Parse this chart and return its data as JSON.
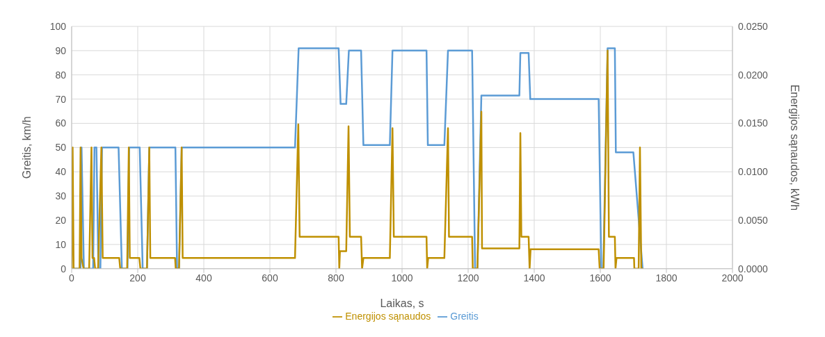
{
  "chart_data": {
    "type": "line",
    "xlabel": "Laikas, s",
    "ylabel": "Greitis, km/h",
    "y2label": "Energijos sąnaudos, kWh",
    "xlim": [
      0,
      2000
    ],
    "xticks": [
      0,
      200,
      400,
      600,
      800,
      1000,
      1200,
      1400,
      1600,
      1800,
      2000
    ],
    "ylim": [
      0,
      100
    ],
    "yticks": [
      0,
      10,
      20,
      30,
      40,
      50,
      60,
      70,
      80,
      90,
      100
    ],
    "y2lim": [
      0,
      0.025
    ],
    "y2ticks": [
      {
        "value": 0,
        "label": "0.0000"
      },
      {
        "value": 0.005,
        "label": "0.0050"
      },
      {
        "value": 0.01,
        "label": "0.0100"
      },
      {
        "value": 0.015,
        "label": "0.0150"
      },
      {
        "value": 0.02,
        "label": "0.0200"
      },
      {
        "value": 0.025,
        "label": "0.0250"
      }
    ],
    "grid": true,
    "legend": "bottom",
    "marker": "none",
    "line_style": "solid",
    "series": [
      {
        "name": "Greitis",
        "color": "#5b9bd5",
        "x": [
          0,
          27,
          30,
          37,
          65,
          69,
          75,
          81,
          87,
          92,
          142,
          152,
          169,
          174,
          206,
          215,
          228,
          235,
          314,
          319,
          325,
          333,
          676,
          687,
          808,
          814,
          831,
          839,
          876,
          883,
          963,
          971,
          1074,
          1078,
          1128,
          1139,
          1212,
          1221,
          1228,
          1240,
          1355,
          1358,
          1383,
          1388,
          1595,
          1603,
          1609,
          1622,
          1644,
          1647,
          1700,
          1728
        ],
        "values": [
          0,
          0,
          50,
          0,
          0,
          50,
          50,
          0,
          0,
          50,
          50,
          0,
          0,
          50,
          50,
          0,
          0,
          50,
          50,
          0,
          0,
          50,
          50,
          91,
          91,
          68,
          68,
          90,
          90,
          51,
          51,
          90,
          90,
          51,
          51,
          90,
          90,
          0,
          0,
          71.5,
          71.5,
          89,
          89,
          70,
          70,
          0,
          0,
          91,
          91,
          48,
          48,
          0
        ]
      },
      {
        "name": "Energijos sąnaudos",
        "color": "#bf9000",
        "axis": "y2",
        "x": [
          0,
          3,
          6,
          24,
          27,
          30,
          36,
          53,
          60,
          63,
          68,
          71,
          80,
          90,
          94,
          144,
          147,
          168,
          173,
          176,
          205,
          208,
          228,
          235,
          238,
          313,
          315,
          325,
          333,
          336,
          676,
          686,
          690,
          808,
          810,
          812,
          831,
          838,
          842,
          876,
          879,
          883,
          963,
          971,
          975,
          1074,
          1076,
          1079,
          1128,
          1139,
          1142,
          1212,
          1214,
          1228,
          1240,
          1242,
          1355,
          1358,
          1361,
          1383,
          1386,
          1389,
          1595,
          1598,
          1610,
          1622,
          1626,
          1644,
          1646,
          1649,
          1702,
          1703,
          1716,
          1720,
          1724,
          1730
        ],
        "values": [
          0,
          0.0125,
          0,
          0,
          0.0125,
          0.0011,
          0,
          0,
          0.0125,
          0.0011,
          0.0011,
          0,
          0,
          0.0125,
          0.0011,
          0.0011,
          0,
          0,
          0.0125,
          0.0011,
          0.0011,
          0,
          0,
          0.0125,
          0.0011,
          0.0011,
          0,
          0,
          0.0125,
          0.0011,
          0.0011,
          0.0149,
          0.0033,
          0.0033,
          0,
          0.0018,
          0.0018,
          0.0147,
          0.0033,
          0.0033,
          0,
          0.0011,
          0.0011,
          0.0145,
          0.0033,
          0.0033,
          0,
          0.0011,
          0.0011,
          0.0145,
          0.0033,
          0.0033,
          0,
          0,
          0.0162,
          0.0021,
          0.0021,
          0.014,
          0.0033,
          0.0033,
          0,
          0.002,
          0.002,
          0,
          0,
          0.0225,
          0.0033,
          0.0033,
          0,
          0.0011,
          0.0011,
          0,
          0,
          0.0125,
          0,
          0
        ]
      }
    ]
  }
}
